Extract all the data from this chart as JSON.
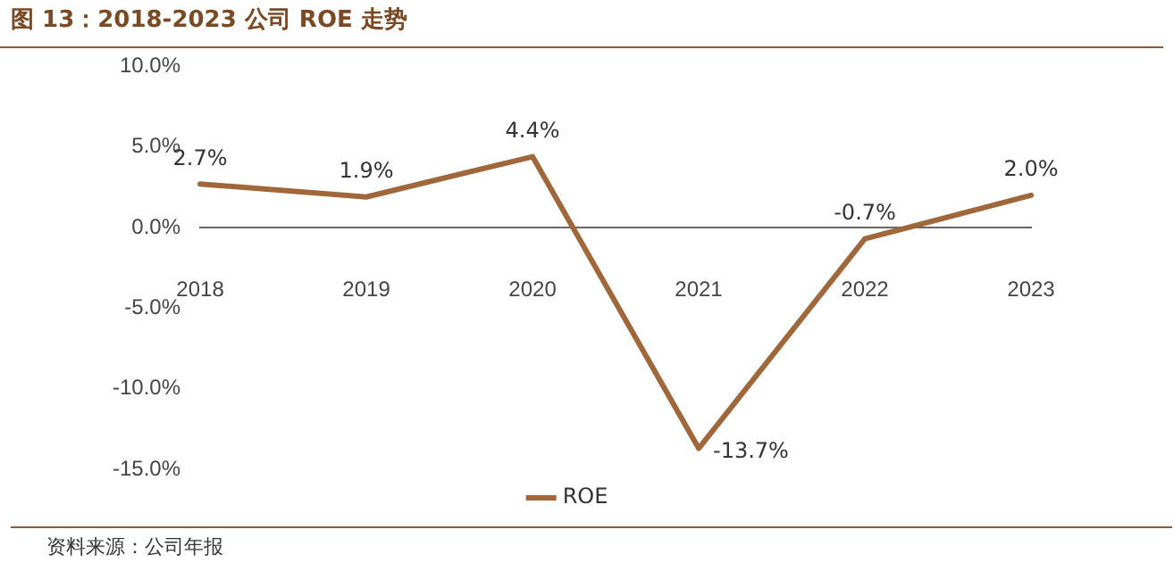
{
  "chart_data": {
    "type": "line",
    "title": "图 13：2018-2023 公司 ROE 走势",
    "categories": [
      "2018",
      "2019",
      "2020",
      "2021",
      "2022",
      "2023"
    ],
    "series": [
      {
        "name": "ROE",
        "color": "#a0673a",
        "values": [
          2.7,
          1.9,
          4.4,
          -13.7,
          -0.7,
          2.0
        ],
        "value_labels": [
          "2.7%",
          "1.9%",
          "4.4%",
          "-13.7%",
          "-0.7%",
          "2.0%"
        ]
      }
    ],
    "ylim": [
      -15,
      10
    ],
    "yticks": [
      {
        "value": -15,
        "label": "-15.0%"
      },
      {
        "value": -10,
        "label": "-10.0%"
      },
      {
        "value": -5,
        "label": "-5.0%"
      },
      {
        "value": 0,
        "label": "0.0%"
      },
      {
        "value": 5,
        "label": "5.0%"
      },
      {
        "value": 10,
        "label": "10.0%"
      }
    ],
    "grid": false,
    "legend": "bottom",
    "marker": "none",
    "line_style": "solid",
    "annotations": [
      "资料来源：公司年报"
    ]
  }
}
